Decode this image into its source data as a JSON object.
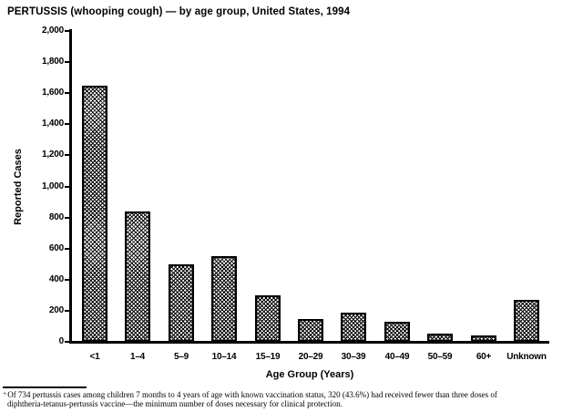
{
  "chart_data": {
    "type": "bar",
    "title": "PERTUSSIS (whooping cough) — by age group, United States, 1994",
    "xlabel": "Age Group (Years)",
    "ylabel": "Reported Cases",
    "ylim": [
      0,
      2000
    ],
    "ytick_interval": 200,
    "ytick_labels": [
      "0",
      "200",
      "400",
      "600",
      "800",
      "1,000",
      "1,200",
      "1,400",
      "1,600",
      "1,800",
      "2,000"
    ],
    "categories": [
      "<1",
      "1–4",
      "5–9",
      "10–14",
      "15–19",
      "20–29",
      "30–39",
      "40–49",
      "50–59",
      "60+",
      "Unknown"
    ],
    "values": [
      1650,
      840,
      500,
      550,
      300,
      145,
      190,
      130,
      50,
      40,
      270
    ],
    "grid": false,
    "legend": "none",
    "bar_fill": "black-on-white diagonal crosshatch pattern",
    "bar_border_color": "#000000",
    "axis_color": "#000000",
    "background_color": "#ffffff"
  },
  "footnote": {
    "marker": "+",
    "line1": "Of 734 pertussis cases among children 7 months to 4 years of age with known vaccination status, 320 (43.6%) had received fewer than three doses of",
    "line2": "diphtheria-tetanus-pertussis vaccine—the minimum number of doses necessary for clinical protection."
  },
  "colors": {
    "background": "#ffffff",
    "text": "#000000"
  }
}
